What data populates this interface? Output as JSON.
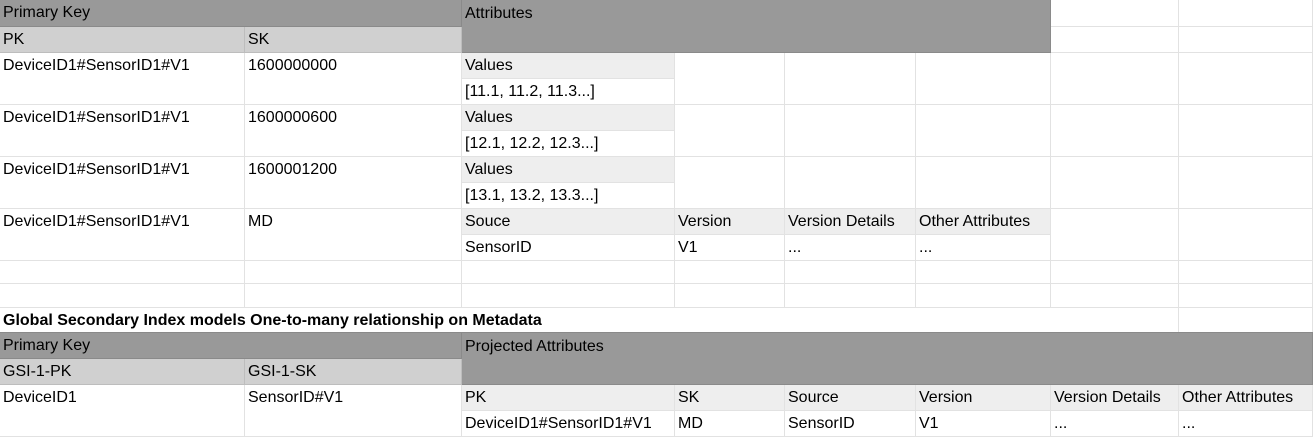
{
  "table1": {
    "header_primary_key": "Primary Key",
    "header_attributes": "Attributes",
    "col_pk": "PK",
    "col_sk": "SK",
    "rows": [
      {
        "pk": "DeviceID1#SensorID1#V1",
        "sk": "1600000000",
        "label": "Values",
        "value": "[11.1, 11.2, 11.3...]"
      },
      {
        "pk": "DeviceID1#SensorID1#V1",
        "sk": "1600000600",
        "label": "Values",
        "value": "[12.1, 12.2, 12.3...]"
      },
      {
        "pk": "DeviceID1#SensorID1#V1",
        "sk": "1600001200",
        "label": "Values",
        "value": "[13.1, 13.2, 13.3...]"
      }
    ],
    "md_row": {
      "pk": "DeviceID1#SensorID1#V1",
      "sk": "MD",
      "attr_labels": [
        "Souce",
        "Version",
        "Version Details",
        "Other Attributes"
      ],
      "attr_values": [
        "SensorID",
        "V1",
        "...",
        "..."
      ]
    }
  },
  "gsi_title": "Global Secondary Index models One-to-many relationship on Metadata",
  "table2": {
    "header_primary_key": "Primary Key",
    "header_projected": "Projected Attributes",
    "col_pk": "GSI-1-PK",
    "col_sk": "GSI-1-SK",
    "row": {
      "pk": "DeviceID1",
      "sk": "SensorID#V1",
      "attr_labels": [
        "PK",
        "SK",
        "Source",
        "Version",
        "Version Details",
        "Other Attributes"
      ],
      "attr_values": [
        "DeviceID1#SensorID1#V1",
        "MD",
        "SensorID",
        "V1",
        "...",
        "..."
      ]
    }
  }
}
